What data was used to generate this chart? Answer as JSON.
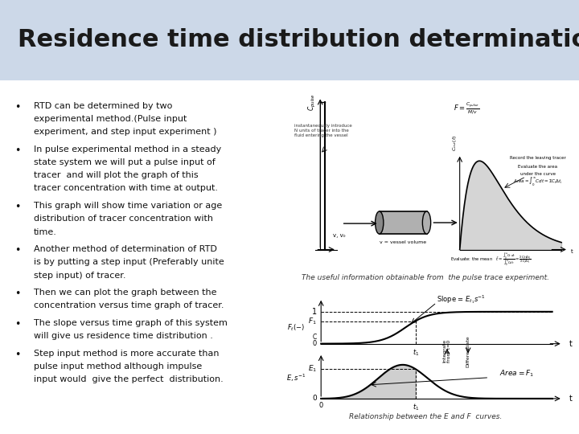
{
  "title": "Residence time distribution determination",
  "title_fontsize": 22,
  "title_bg_color": "#ccd8e8",
  "slide_bg_color": "#ffffff",
  "bullet_points": [
    "RTD can be determined by two\nexperimental method.(Pulse input\nexperiment, and step input experiment )",
    "In pulse experimental method in a steady\nstate system we will put a pulse input of\ntracer  and will plot the graph of this\ntracer concentration with time at output.",
    "This graph will show time variation or age\ndistribution of tracer concentration with\ntime.",
    "Another method of determination of RTD\nis by putting a step input (Preferably unite\nstep input) of tracer.",
    "Then we can plot the graph between the\nconcentration versus time graph of tracer.",
    "The slope versus time graph of this system\nwill give us residence time distribution .",
    "Step input method is more accurate than\npulse input method although impulse\ninput would  give the perfect  distribution."
  ],
  "bullet_fontsize": 8.0,
  "bullet_color": "#111111",
  "image1_caption": "The useful information obtainable from  the pulse trace experiment.",
  "image2_caption": "Relationship between the E and F  curves."
}
